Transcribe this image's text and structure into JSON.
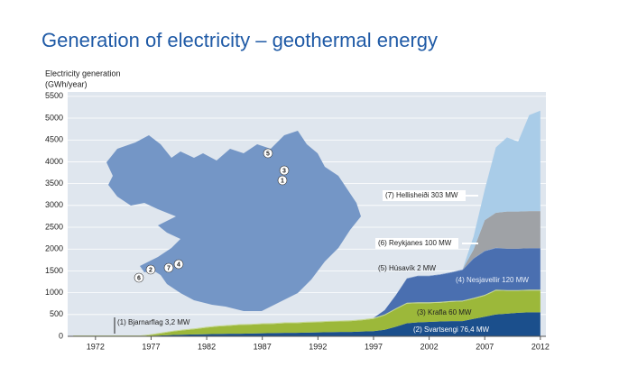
{
  "chart_data": {
    "type": "stacked-area",
    "title": "Generation of electricity – geothermal energy",
    "ylabel": "Electricity generation",
    "ylabel_unit": "(GWh/year)",
    "x": [
      1970,
      1971,
      1972,
      1973,
      1974,
      1975,
      1976,
      1977,
      1978,
      1979,
      1980,
      1981,
      1982,
      1983,
      1984,
      1985,
      1986,
      1987,
      1988,
      1989,
      1990,
      1991,
      1992,
      1993,
      1994,
      1995,
      1996,
      1997,
      1998,
      1999,
      2000,
      2001,
      2002,
      2003,
      2004,
      2005,
      2006,
      2007,
      2008,
      2009,
      2010,
      2011,
      2012
    ],
    "xlim": [
      1969.5,
      2012.5
    ],
    "xticks": [
      1972,
      1977,
      1982,
      1987,
      1992,
      1997,
      2002,
      2007,
      2012
    ],
    "ylim": [
      0,
      5600
    ],
    "yticks": [
      0,
      500,
      1000,
      1500,
      2000,
      2500,
      3000,
      3500,
      4000,
      4500,
      5000,
      5500
    ],
    "grid": true,
    "series": [
      {
        "name": "(2) Svartsengi 76,4 MW",
        "color": "#1b4f8c",
        "values": [
          0,
          0,
          0,
          0,
          0,
          0,
          0,
          10,
          20,
          30,
          40,
          45,
          50,
          55,
          60,
          60,
          65,
          70,
          75,
          80,
          80,
          85,
          90,
          95,
          100,
          100,
          110,
          120,
          150,
          220,
          300,
          320,
          330,
          340,
          350,
          350,
          400,
          450,
          500,
          520,
          540,
          550,
          550
        ]
      },
      {
        "name": "(3) Krafla 60 MW",
        "color": "#9cb83a",
        "values": [
          0,
          0,
          0,
          0,
          0,
          0,
          0,
          20,
          50,
          80,
          100,
          120,
          150,
          170,
          180,
          200,
          200,
          210,
          210,
          220,
          220,
          230,
          230,
          240,
          240,
          250,
          260,
          280,
          330,
          400,
          450,
          440,
          430,
          430,
          440,
          450,
          460,
          480,
          550,
          520,
          500,
          500,
          500
        ]
      },
      {
        "name": "(1) Bjarnarflag 3,2 MW",
        "color": "#c5d88f",
        "values": [
          20,
          20,
          20,
          20,
          20,
          20,
          20,
          20,
          20,
          20,
          20,
          20,
          20,
          20,
          20,
          20,
          20,
          20,
          20,
          20,
          20,
          20,
          20,
          20,
          20,
          20,
          20,
          20,
          20,
          20,
          20,
          20,
          20,
          20,
          20,
          20,
          20,
          20,
          20,
          20,
          20,
          20,
          20
        ]
      },
      {
        "name": "(4) Nesjavellir 120 MW",
        "color": "#4a6fb0",
        "values": [
          0,
          0,
          0,
          0,
          0,
          0,
          0,
          0,
          0,
          0,
          0,
          0,
          0,
          0,
          0,
          0,
          0,
          0,
          0,
          0,
          0,
          0,
          0,
          0,
          0,
          0,
          0,
          0,
          100,
          300,
          550,
          600,
          600,
          620,
          650,
          700,
          900,
          1000,
          950,
          950,
          950,
          950,
          950
        ]
      },
      {
        "name": "(5) Húsavík 2 MW",
        "color": "#6e8ec4",
        "values": [
          0,
          0,
          0,
          0,
          0,
          0,
          0,
          0,
          0,
          0,
          0,
          0,
          0,
          0,
          0,
          0,
          0,
          0,
          0,
          0,
          0,
          0,
          0,
          0,
          0,
          0,
          0,
          0,
          0,
          0,
          10,
          10,
          10,
          10,
          10,
          10,
          10,
          10,
          10,
          0,
          0,
          0,
          0
        ]
      },
      {
        "name": "(6) Reykjanes 100 MW",
        "color": "#9fa2a6",
        "values": [
          0,
          0,
          0,
          0,
          0,
          0,
          0,
          0,
          0,
          0,
          0,
          0,
          0,
          0,
          0,
          0,
          0,
          0,
          0,
          0,
          0,
          0,
          0,
          0,
          0,
          0,
          0,
          0,
          0,
          0,
          0,
          0,
          0,
          0,
          0,
          0,
          200,
          700,
          800,
          850,
          850,
          850,
          850
        ]
      },
      {
        "name": "(7) Hellisheiði 303 MW",
        "color": "#a9cce8",
        "values": [
          0,
          0,
          0,
          0,
          0,
          0,
          0,
          0,
          0,
          0,
          0,
          0,
          0,
          0,
          0,
          0,
          0,
          0,
          0,
          0,
          0,
          0,
          0,
          0,
          0,
          0,
          0,
          0,
          0,
          0,
          0,
          0,
          0,
          0,
          0,
          0,
          300,
          700,
          1500,
          1700,
          1600,
          2200,
          2300
        ]
      }
    ],
    "map_markers": [
      "5",
      "3",
      "1",
      "7",
      "4",
      "2",
      "6"
    ]
  }
}
